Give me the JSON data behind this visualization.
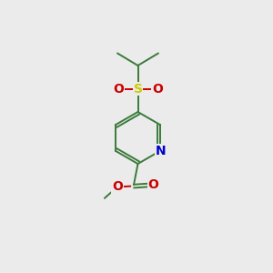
{
  "background_color": "#ebebeb",
  "bond_color": "#3a7a3a",
  "atom_colors": {
    "N": "#0000cc",
    "O": "#cc0000",
    "S": "#cccc00",
    "C": "#3a7a3a"
  },
  "figsize": [
    3.0,
    3.0
  ],
  "dpi": 100,
  "bond_lw": 1.4,
  "font_size": 10
}
